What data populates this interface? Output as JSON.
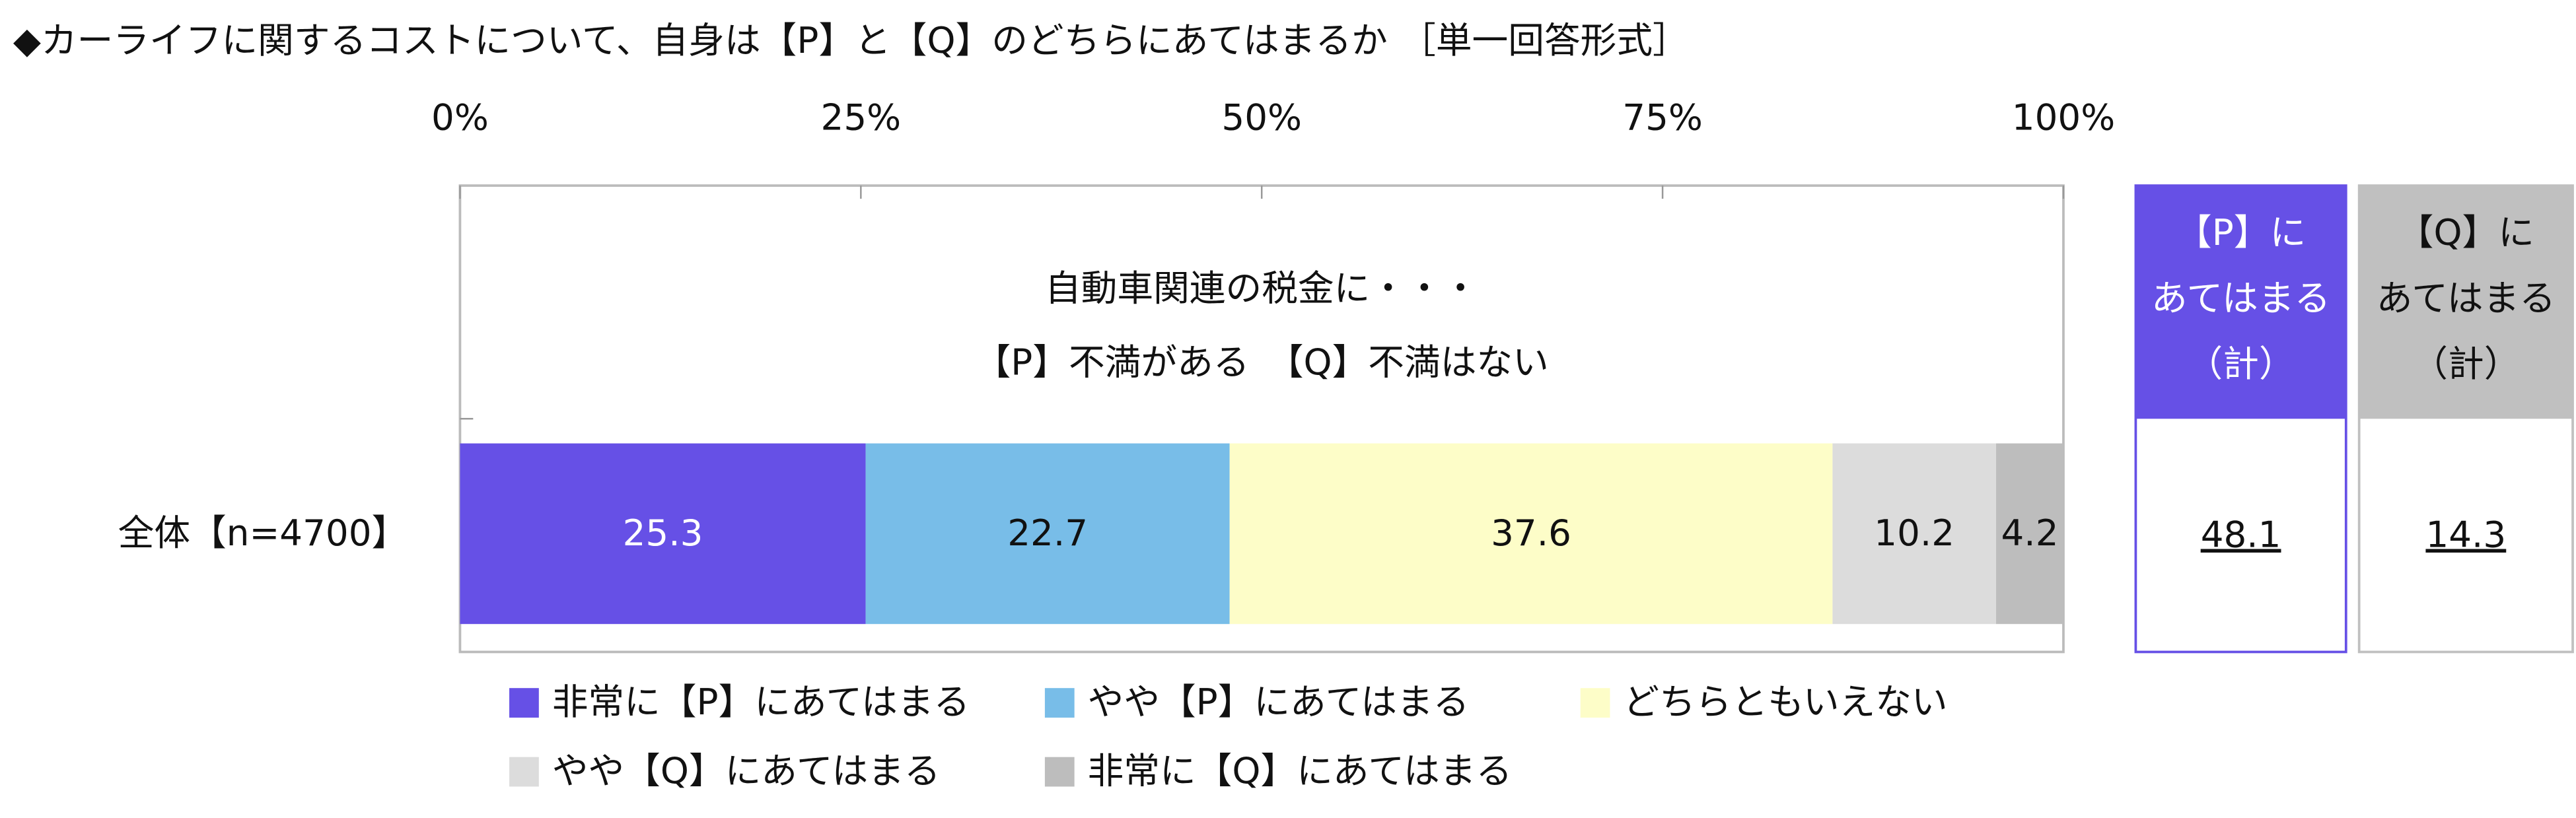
{
  "chart_data": {
    "type": "stacked-bar",
    "orientation": "horizontal",
    "title": "◆カーライフに関するコストについて、自身は【P】と【Q】のどちらにあてはまるか",
    "subtitle": "［単一回答形式］",
    "annotations": [
      "自動車関連の税金に・・・",
      "【P】不満がある　【Q】不満はない"
    ],
    "categories": [
      "全体【n=4700】"
    ],
    "series": [
      {
        "name": "非常に【P】にあてはまる",
        "color": "#6650e6",
        "values": [
          25.3
        ]
      },
      {
        "name": "やや【P】にあてはまる",
        "color": "#78bde8",
        "values": [
          22.7
        ]
      },
      {
        "name": "どちらともいえない",
        "color": "#fdfdc8",
        "values": [
          37.6
        ]
      },
      {
        "name": "やや【Q】にあてはまる",
        "color": "#dcdcdc",
        "values": [
          10.2
        ]
      },
      {
        "name": "非常に【Q】にあてはまる",
        "color": "#bdbdbd",
        "values": [
          4.2
        ]
      }
    ],
    "xlim": [
      0,
      100
    ],
    "xticks": [
      {
        "value": 0,
        "label": "0%"
      },
      {
        "value": 25,
        "label": "25%"
      },
      {
        "value": 50,
        "label": "50%"
      },
      {
        "value": 75,
        "label": "75%"
      },
      {
        "value": 100,
        "label": "100%"
      }
    ],
    "summary": [
      {
        "header": [
          "【P】に",
          "あてはまる",
          "（計）"
        ],
        "color": "#6650e6",
        "values": [
          48.1
        ]
      },
      {
        "header": [
          "【Q】に",
          "あてはまる",
          "（計）"
        ],
        "color": "#c0c0c0",
        "values": [
          14.3
        ]
      }
    ]
  }
}
